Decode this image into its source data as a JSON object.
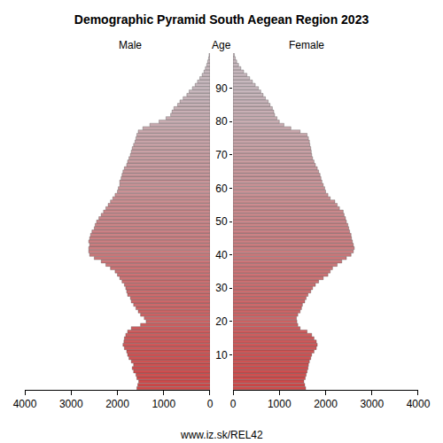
{
  "chart_data": {
    "type": "pyramid",
    "title": "Demographic Pyramid South Aegean Region 2023",
    "ylabel": "Age",
    "caption": "www.iz.sk/REL42",
    "orientation": "horizontal",
    "grid": false,
    "categories": [
      0,
      1,
      2,
      3,
      4,
      5,
      6,
      7,
      8,
      9,
      10,
      11,
      12,
      13,
      14,
      15,
      16,
      17,
      18,
      19,
      20,
      21,
      22,
      23,
      24,
      25,
      26,
      27,
      28,
      29,
      30,
      31,
      32,
      33,
      34,
      35,
      36,
      37,
      38,
      39,
      40,
      41,
      42,
      43,
      44,
      45,
      46,
      47,
      48,
      49,
      50,
      51,
      52,
      53,
      54,
      55,
      56,
      57,
      58,
      59,
      60,
      61,
      62,
      63,
      64,
      65,
      66,
      67,
      68,
      69,
      70,
      71,
      72,
      73,
      74,
      75,
      76,
      77,
      78,
      79,
      80,
      81,
      82,
      83,
      84,
      85,
      86,
      87,
      88,
      89,
      90,
      91,
      92,
      93,
      94,
      95,
      96,
      97,
      98,
      99,
      100
    ],
    "xlim": [
      0,
      4000
    ],
    "xticks": [
      0,
      1000,
      2000,
      3000,
      4000
    ],
    "ylim": [
      -0.5,
      100.5
    ],
    "yticks": [
      10,
      20,
      30,
      40,
      50,
      60,
      70,
      80,
      90
    ],
    "series": [
      {
        "name": "Male",
        "color": "#d04848",
        "values": [
          1580,
          1560,
          1540,
          1580,
          1600,
          1650,
          1680,
          1650,
          1700,
          1750,
          1780,
          1800,
          1850,
          1880,
          1860,
          1850,
          1820,
          1780,
          1700,
          1500,
          1380,
          1420,
          1500,
          1550,
          1600,
          1650,
          1700,
          1720,
          1780,
          1800,
          1820,
          1850,
          1900,
          1950,
          2000,
          2050,
          2150,
          2250,
          2350,
          2500,
          2600,
          2620,
          2620,
          2600,
          2620,
          2600,
          2580,
          2550,
          2500,
          2480,
          2450,
          2400,
          2350,
          2300,
          2250,
          2200,
          2150,
          2100,
          2050,
          2000,
          1980,
          1950,
          1950,
          1920,
          1900,
          1880,
          1850,
          1800,
          1780,
          1750,
          1720,
          1700,
          1680,
          1650,
          1620,
          1600,
          1580,
          1550,
          1450,
          1300,
          1100,
          950,
          850,
          820,
          780,
          700,
          650,
          580,
          500,
          450,
          380,
          320,
          270,
          220,
          170,
          130,
          100,
          70,
          50,
          30,
          20
        ]
      },
      {
        "name": "Female",
        "color": "#d04848",
        "values": [
          1570,
          1550,
          1530,
          1560,
          1580,
          1600,
          1620,
          1630,
          1650,
          1680,
          1700,
          1750,
          1800,
          1820,
          1800,
          1750,
          1700,
          1600,
          1450,
          1400,
          1380,
          1370,
          1400,
          1450,
          1480,
          1500,
          1550,
          1580,
          1620,
          1680,
          1720,
          1780,
          1850,
          1950,
          2050,
          2100,
          2150,
          2250,
          2350,
          2450,
          2550,
          2600,
          2620,
          2600,
          2580,
          2560,
          2550,
          2520,
          2500,
          2480,
          2450,
          2430,
          2400,
          2380,
          2300,
          2250,
          2200,
          2100,
          2050,
          2000,
          1980,
          1950,
          1920,
          1900,
          1880,
          1850,
          1820,
          1780,
          1750,
          1720,
          1700,
          1690,
          1680,
          1660,
          1650,
          1630,
          1600,
          1450,
          1250,
          1100,
          1000,
          950,
          900,
          880,
          850,
          800,
          760,
          700,
          650,
          600,
          550,
          480,
          420,
          360,
          300,
          230,
          170,
          120,
          80,
          50,
          30
        ]
      }
    ]
  }
}
